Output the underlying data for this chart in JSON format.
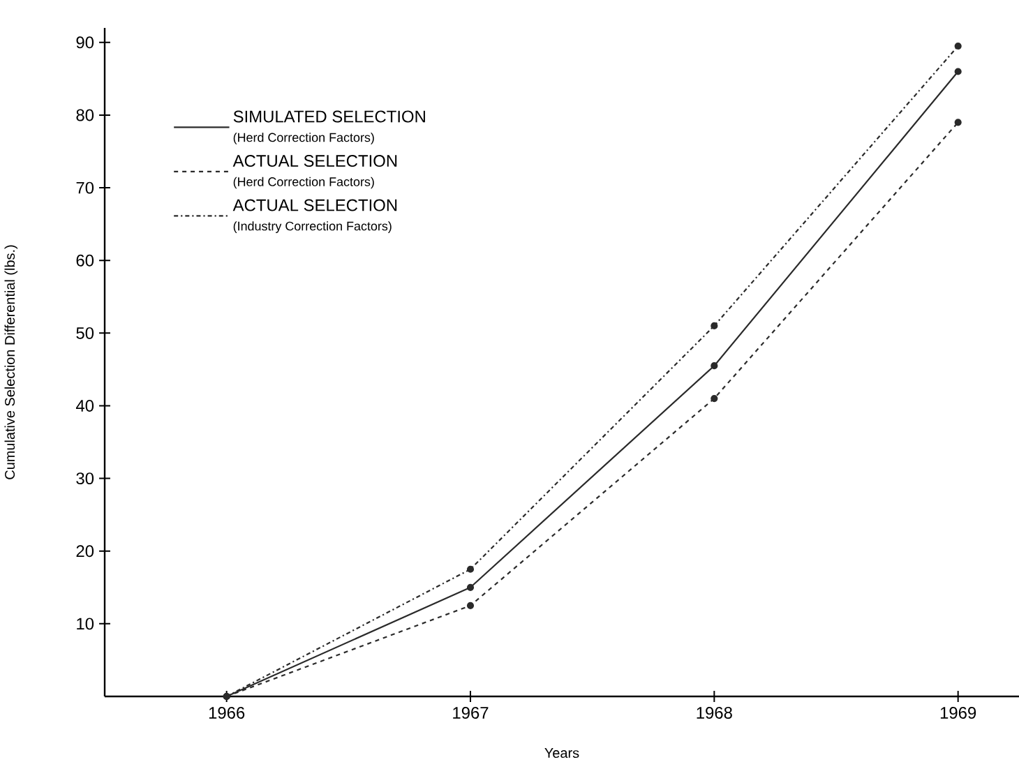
{
  "chart_data": {
    "type": "line",
    "xlabel": "Years",
    "ylabel": "Cumulative Selection Differential (lbs.)",
    "x": [
      1966,
      1967,
      1968,
      1969
    ],
    "xlim": [
      1965.5,
      1969.25
    ],
    "xticks": [
      1966,
      1967,
      1968,
      1969
    ],
    "ylim": [
      0,
      92
    ],
    "yticks": [
      10,
      20,
      30,
      40,
      50,
      60,
      70,
      80,
      90
    ],
    "marker": "circle",
    "legend": "top left",
    "grid": false,
    "annotations": [
      "(Herd Correction Factors)",
      "(Herd Correction Factors)",
      "(Industry Correction Factors)"
    ],
    "series": [
      {
        "name": "SIMULATED SELECTION",
        "color": "#2a2a2a",
        "line_style": "solid",
        "values": [
          0,
          15,
          45.5,
          86
        ]
      },
      {
        "name": "ACTUAL SELECTION",
        "color": "#2a2a2a",
        "line_style": "dashed",
        "values": [
          0,
          12.5,
          41,
          79
        ]
      },
      {
        "name": "ACTUAL SELECTION",
        "color": "#2a2a2a",
        "line_style": "dashdot",
        "values": [
          0,
          17.5,
          51,
          89.5
        ]
      }
    ]
  }
}
